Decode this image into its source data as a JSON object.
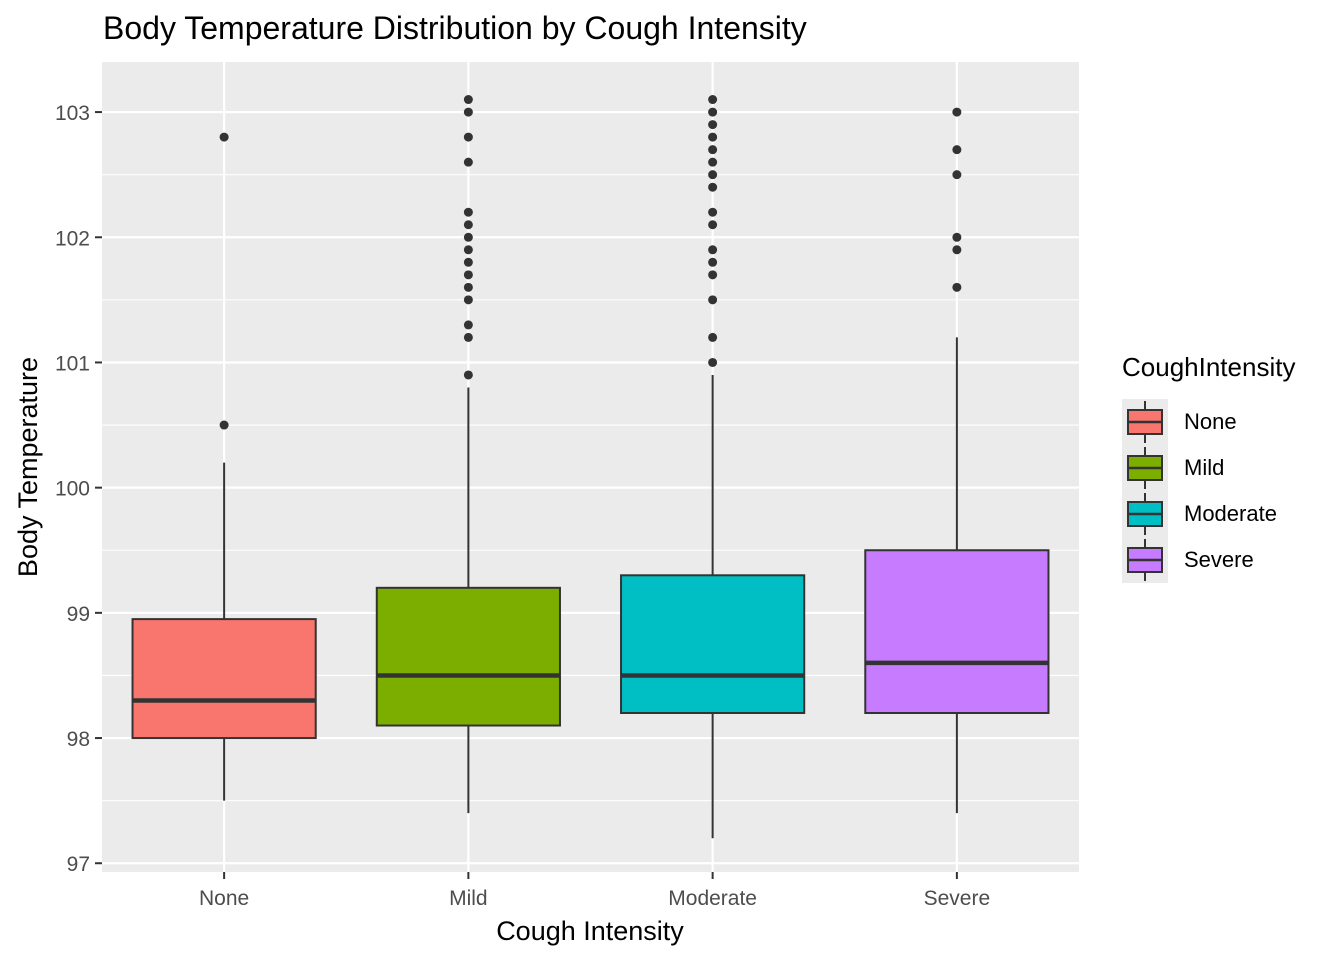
{
  "chart_data": {
    "type": "box",
    "title": "Body Temperature Distribution by Cough Intensity",
    "xlabel": "Cough Intensity",
    "ylabel": "Body Temperature",
    "ylim": [
      96.93,
      103.4
    ],
    "yticks": [
      97,
      98,
      99,
      100,
      101,
      102,
      103
    ],
    "grid": true,
    "legend_title": "CoughIntensity",
    "legend_position": "right",
    "categories": [
      "None",
      "Mild",
      "Moderate",
      "Severe"
    ],
    "series": [
      {
        "name": "None",
        "color": "#F8766D",
        "min": 97.5,
        "q1": 98.0,
        "median": 98.3,
        "q3": 98.95,
        "max": 100.2,
        "outliers": [
          100.5,
          102.8
        ]
      },
      {
        "name": "Mild",
        "color": "#7CAE00",
        "min": 97.4,
        "q1": 98.1,
        "median": 98.5,
        "q3": 99.2,
        "max": 100.8,
        "outliers": [
          100.9,
          101.2,
          101.3,
          101.5,
          101.6,
          101.7,
          101.8,
          101.9,
          102.0,
          102.1,
          102.2,
          102.6,
          102.8,
          103.0,
          103.1
        ]
      },
      {
        "name": "Moderate",
        "color": "#00BFC4",
        "min": 97.2,
        "q1": 98.2,
        "median": 98.5,
        "q3": 99.3,
        "max": 100.9,
        "outliers": [
          101.0,
          101.2,
          101.5,
          101.7,
          101.8,
          101.9,
          102.1,
          102.2,
          102.4,
          102.5,
          102.6,
          102.7,
          102.8,
          102.9,
          103.0,
          103.1
        ]
      },
      {
        "name": "Severe",
        "color": "#C77CFF",
        "min": 97.4,
        "q1": 98.2,
        "median": 98.6,
        "q3": 99.5,
        "max": 101.2,
        "outliers": [
          101.6,
          101.9,
          102.0,
          102.5,
          102.7,
          103.0
        ]
      }
    ]
  }
}
